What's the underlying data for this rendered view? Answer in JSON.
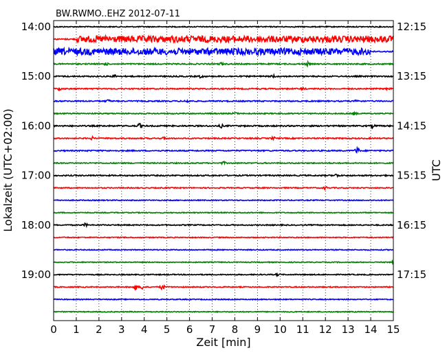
{
  "chart_data": {
    "type": "line",
    "title": "BW.RWMO..EHZ 2012-07-11",
    "xlabel": "Zeit  [min]",
    "ylabel_left": "Lokalzeit (UTC+02:00)",
    "ylabel_right": "UTC",
    "xlim": [
      0,
      15
    ],
    "xticks": [
      "0",
      "1",
      "2",
      "3",
      "4",
      "5",
      "6",
      "7",
      "8",
      "9",
      "10",
      "11",
      "12",
      "13",
      "14",
      "15"
    ],
    "grid": "vertical dotted",
    "left_tick_labels": [
      "14:00",
      "15:00",
      "16:00",
      "17:00",
      "18:00",
      "19:00"
    ],
    "right_tick_labels": [
      "12:15",
      "13:15",
      "14:15",
      "15:15",
      "16:15",
      "17:15"
    ],
    "row_interval_min": 15,
    "rows_per_hour": 4,
    "color_cycle": [
      "#000000",
      "#ff0000",
      "#0000ff",
      "#008000"
    ],
    "rows": [
      {
        "start": "14:00",
        "color": "#000000",
        "amplitude": 0.12,
        "events": []
      },
      {
        "start": "14:15",
        "color": "#ff0000",
        "amplitude": 0.15,
        "events": [],
        "high_noise": {
          "from": 1.0,
          "to": 15,
          "amplitude": 0.8
        }
      },
      {
        "start": "14:30",
        "color": "#0000ff",
        "amplitude": 0.15,
        "events": [],
        "high_noise": {
          "from": 0,
          "to": 14.0,
          "amplitude": 0.8
        }
      },
      {
        "start": "14:45",
        "color": "#008000",
        "amplitude": 0.14,
        "events": [
          {
            "x": 2.3,
            "amp": 0.3
          },
          {
            "x": 7.4,
            "amp": 0.3
          },
          {
            "x": 11.2,
            "amp": 0.4
          }
        ]
      },
      {
        "start": "15:00",
        "color": "#000000",
        "amplitude": 0.15,
        "events": [
          {
            "x": 2.7,
            "amp": 0.3
          },
          {
            "x": 6.5,
            "amp": 0.3
          },
          {
            "x": 9.7,
            "amp": 0.3
          }
        ]
      },
      {
        "start": "15:15",
        "color": "#ff0000",
        "amplitude": 0.14,
        "events": [
          {
            "x": 0.25,
            "amp": 0.35
          },
          {
            "x": 11.0,
            "amp": 0.3
          },
          {
            "x": 14.8,
            "amp": 0.35
          }
        ]
      },
      {
        "start": "15:30",
        "color": "#0000ff",
        "amplitude": 0.14,
        "events": [
          {
            "x": 2.4,
            "amp": 0.3
          },
          {
            "x": 5.9,
            "amp": 0.3
          },
          {
            "x": 13.4,
            "amp": 0.35
          }
        ]
      },
      {
        "start": "15:45",
        "color": "#008000",
        "amplitude": 0.13,
        "events": [
          {
            "x": 8.0,
            "amp": 0.3
          },
          {
            "x": 13.3,
            "amp": 0.35
          }
        ]
      },
      {
        "start": "16:00",
        "color": "#000000",
        "amplitude": 0.16,
        "events": [
          {
            "x": 3.8,
            "amp": 0.5
          },
          {
            "x": 7.4,
            "amp": 0.35
          },
          {
            "x": 14.1,
            "amp": 0.35
          }
        ]
      },
      {
        "start": "16:15",
        "color": "#ff0000",
        "amplitude": 0.14,
        "events": [
          {
            "x": 1.7,
            "amp": 0.3
          },
          {
            "x": 4.9,
            "amp": 0.3
          },
          {
            "x": 9.7,
            "amp": 0.3
          }
        ]
      },
      {
        "start": "16:30",
        "color": "#0000ff",
        "amplitude": 0.14,
        "events": [
          {
            "x": 13.4,
            "amp": 0.9
          }
        ]
      },
      {
        "start": "16:45",
        "color": "#008000",
        "amplitude": 0.13,
        "events": [
          {
            "x": 7.5,
            "amp": 0.3
          }
        ]
      },
      {
        "start": "17:00",
        "color": "#000000",
        "amplitude": 0.15,
        "events": [
          {
            "x": 12.5,
            "amp": 0.35
          }
        ]
      },
      {
        "start": "17:15",
        "color": "#ff0000",
        "amplitude": 0.12,
        "events": [
          {
            "x": 12.0,
            "amp": 0.35
          }
        ]
      },
      {
        "start": "17:30",
        "color": "#0000ff",
        "amplitude": 0.11,
        "events": []
      },
      {
        "start": "17:45",
        "color": "#008000",
        "amplitude": 0.11,
        "events": []
      },
      {
        "start": "18:00",
        "color": "#000000",
        "amplitude": 0.13,
        "events": [
          {
            "x": 1.4,
            "amp": 0.35
          }
        ]
      },
      {
        "start": "18:15",
        "color": "#ff0000",
        "amplitude": 0.11,
        "events": []
      },
      {
        "start": "18:30",
        "color": "#0000ff",
        "amplitude": 0.11,
        "events": []
      },
      {
        "start": "18:45",
        "color": "#008000",
        "amplitude": 0.11,
        "events": [
          {
            "x": 15.0,
            "amp": 0.35
          }
        ]
      },
      {
        "start": "19:00",
        "color": "#000000",
        "amplitude": 0.12,
        "events": [
          {
            "x": 9.9,
            "amp": 0.3
          }
        ]
      },
      {
        "start": "19:15",
        "color": "#ff0000",
        "amplitude": 0.12,
        "events": [
          {
            "x": 3.6,
            "amp": 0.8
          },
          {
            "x": 3.9,
            "amp": 0.6
          },
          {
            "x": 4.8,
            "amp": 0.8
          }
        ]
      },
      {
        "start": "19:30",
        "color": "#0000ff",
        "amplitude": 0.11,
        "events": []
      },
      {
        "start": "19:45",
        "color": "#008000",
        "amplitude": 0.11,
        "events": []
      }
    ]
  }
}
